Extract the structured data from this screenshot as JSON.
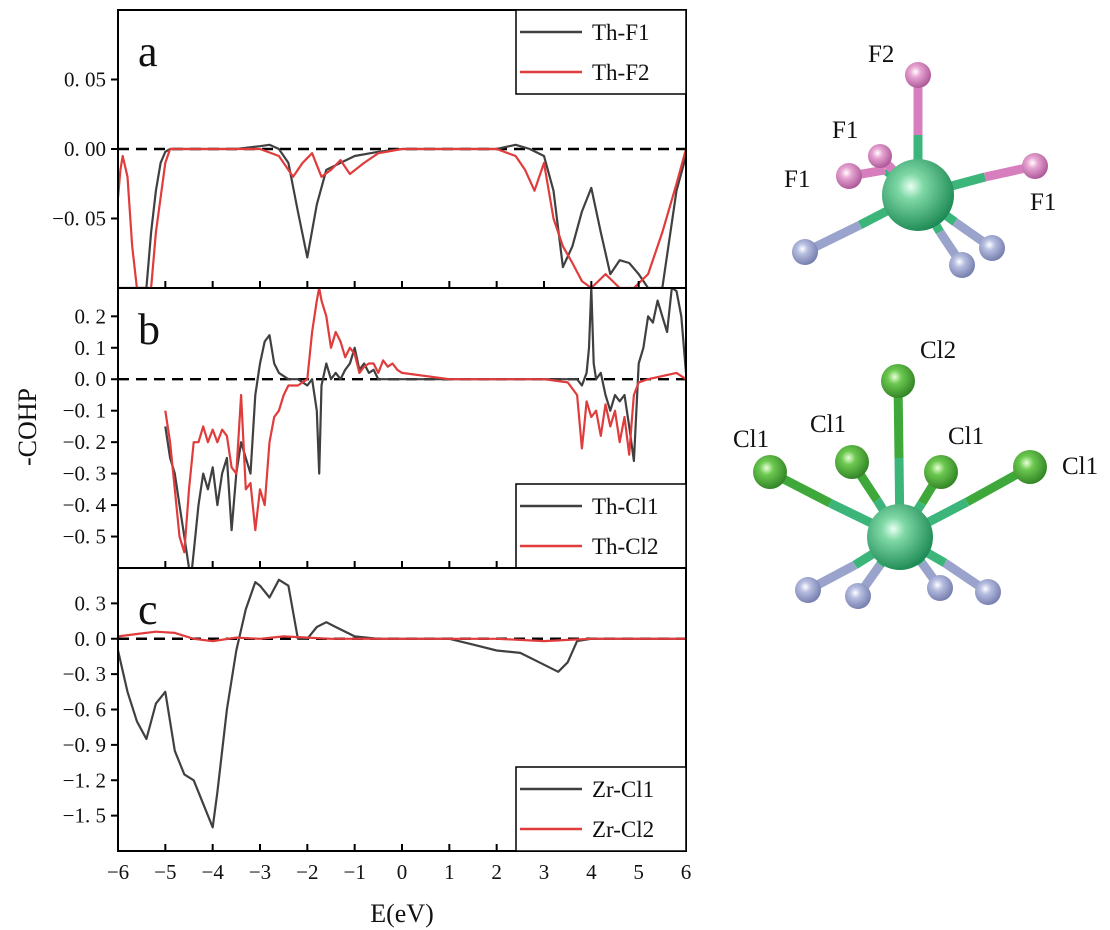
{
  "figure": {
    "xlabel": "E(eV)",
    "ylabel": "-COHP"
  },
  "chart_data": [
    {
      "type": "line",
      "panel_label": "a",
      "xlim": [
        -6,
        6
      ],
      "ylim": [
        -0.1,
        0.1
      ],
      "yticks": [
        0.05,
        0.0,
        -0.05
      ],
      "yticklabels": [
        "0. 05",
        "0. 00",
        "−0. 05"
      ],
      "zero_line": true,
      "legend_position": "top-right",
      "series": [
        {
          "name": "Th-F1",
          "color": "#404040",
          "x": [
            -6,
            -5.7,
            -5.5,
            -5.4,
            -5.3,
            -5.2,
            -5.1,
            -5.0,
            -4.9,
            -4.7,
            -4.5,
            -4.0,
            -3.5,
            -3.0,
            -2.8,
            -2.6,
            -2.4,
            -2.2,
            -2.0,
            -1.8,
            -1.6,
            -1.3,
            -1.0,
            -0.5,
            0.0,
            1.0,
            2.0,
            2.4,
            2.7,
            3.0,
            3.2,
            3.4,
            3.6,
            3.8,
            4.0,
            4.2,
            4.4,
            4.6,
            4.8,
            5.0,
            5.2,
            5.5,
            5.8,
            6.0
          ],
          "y": [
            -0.1,
            -0.1,
            -0.1,
            -0.1,
            -0.06,
            -0.03,
            -0.01,
            -0.002,
            0.0,
            0.0,
            0.0,
            0.0,
            0.0,
            0.002,
            0.003,
            0.0,
            -0.01,
            -0.045,
            -0.078,
            -0.04,
            -0.015,
            -0.01,
            -0.005,
            -0.002,
            0.0,
            0.0,
            0.0,
            0.003,
            0.0,
            -0.005,
            -0.03,
            -0.085,
            -0.07,
            -0.045,
            -0.028,
            -0.06,
            -0.09,
            -0.08,
            -0.082,
            -0.09,
            -0.1,
            -0.1,
            -0.03,
            -0.005
          ]
        },
        {
          "name": "Th-F2",
          "color": "#e03c3c",
          "x": [
            -6,
            -5.95,
            -5.9,
            -5.8,
            -5.7,
            -5.6,
            -5.5,
            -5.4,
            -5.3,
            -5.2,
            -5.0,
            -4.9,
            -4.5,
            -4.0,
            -3.5,
            -3.0,
            -2.6,
            -2.3,
            -2.1,
            -1.9,
            -1.7,
            -1.5,
            -1.3,
            -1.1,
            -0.8,
            -0.5,
            0.0,
            1.0,
            2.0,
            2.4,
            2.6,
            2.8,
            3.0,
            3.2,
            3.4,
            3.6,
            3.8,
            4.0,
            4.3,
            4.6,
            4.9,
            5.2,
            5.5,
            5.8,
            6.0
          ],
          "y": [
            -0.035,
            -0.015,
            -0.005,
            -0.02,
            -0.07,
            -0.1,
            -0.1,
            -0.1,
            -0.1,
            -0.06,
            -0.01,
            0.0,
            0.0,
            0.0,
            0.0,
            0.0,
            -0.005,
            -0.02,
            -0.01,
            -0.003,
            -0.02,
            -0.015,
            -0.008,
            -0.018,
            -0.01,
            -0.003,
            0.0,
            0.0,
            0.0,
            -0.005,
            -0.015,
            -0.03,
            -0.01,
            -0.05,
            -0.07,
            -0.082,
            -0.095,
            -0.1,
            -0.09,
            -0.1,
            -0.1,
            -0.09,
            -0.06,
            -0.025,
            0.0
          ]
        }
      ]
    },
    {
      "type": "line",
      "panel_label": "b",
      "xlim": [
        -6,
        6
      ],
      "ylim": [
        -0.6,
        0.29
      ],
      "yticks": [
        0.2,
        0.1,
        0.0,
        -0.1,
        -0.2,
        -0.3,
        -0.4,
        -0.5
      ],
      "yticklabels": [
        "0. 2",
        "0. 1",
        "0. 0",
        "−0. 1",
        "−0. 2",
        "−0. 3",
        "−0. 4",
        "−0. 5"
      ],
      "zero_line": true,
      "legend_position": "bottom-right",
      "series": [
        {
          "name": "Th-Cl1",
          "color": "#404040",
          "x": [
            -5.0,
            -4.9,
            -4.8,
            -4.7,
            -4.6,
            -4.5,
            -4.45,
            -4.4,
            -4.3,
            -4.2,
            -4.1,
            -4.0,
            -3.9,
            -3.8,
            -3.7,
            -3.6,
            -3.5,
            -3.4,
            -3.3,
            -3.2,
            -3.1,
            -3.0,
            -2.9,
            -2.8,
            -2.7,
            -2.6,
            -2.4,
            -2.2,
            -2.0,
            -1.9,
            -1.8,
            -1.75,
            -1.7,
            -1.6,
            -1.5,
            -1.4,
            -1.3,
            -1.2,
            -1.1,
            -1.0,
            -0.9,
            -0.8,
            -0.7,
            -0.6,
            -0.5,
            -0.4,
            0.0,
            1.0,
            2.0,
            3.0,
            3.5,
            3.7,
            3.8,
            3.9,
            3.95,
            4.0,
            4.05,
            4.1,
            4.2,
            4.3,
            4.4,
            4.5,
            4.6,
            4.7,
            4.8,
            4.9,
            5.0,
            5.1,
            5.2,
            5.3,
            5.4,
            5.5,
            5.6,
            5.7,
            5.8,
            5.9,
            6.0
          ],
          "y": [
            -0.15,
            -0.25,
            -0.3,
            -0.4,
            -0.5,
            -0.6,
            -0.62,
            -0.55,
            -0.4,
            -0.3,
            -0.35,
            -0.28,
            -0.4,
            -0.3,
            -0.25,
            -0.48,
            -0.3,
            -0.2,
            -0.25,
            -0.3,
            -0.05,
            0.05,
            0.12,
            0.14,
            0.05,
            0.02,
            0.0,
            0.0,
            -0.02,
            0.0,
            -0.1,
            -0.3,
            -0.02,
            0.05,
            0.0,
            0.02,
            0.0,
            0.03,
            0.05,
            0.1,
            0.03,
            0.05,
            0.02,
            0.03,
            0.0,
            0.0,
            0.0,
            0.0,
            0.0,
            0.0,
            0.0,
            0.0,
            -0.02,
            0.02,
            0.1,
            0.29,
            0.05,
            0.0,
            0.02,
            -0.05,
            -0.1,
            -0.05,
            -0.07,
            -0.05,
            -0.15,
            -0.26,
            0.05,
            0.1,
            0.2,
            0.18,
            0.25,
            0.2,
            0.15,
            0.29,
            0.28,
            0.2,
            0.02
          ]
        },
        {
          "name": "Th-Cl2",
          "color": "#e03c3c",
          "x": [
            -5.0,
            -4.9,
            -4.8,
            -4.7,
            -4.6,
            -4.5,
            -4.4,
            -4.3,
            -4.2,
            -4.1,
            -4.0,
            -3.9,
            -3.8,
            -3.7,
            -3.6,
            -3.5,
            -3.4,
            -3.3,
            -3.2,
            -3.1,
            -3.0,
            -2.9,
            -2.8,
            -2.7,
            -2.6,
            -2.5,
            -2.4,
            -2.2,
            -2.0,
            -1.9,
            -1.8,
            -1.75,
            -1.7,
            -1.6,
            -1.5,
            -1.4,
            -1.3,
            -1.2,
            -1.1,
            -1.0,
            -0.9,
            -0.8,
            -0.7,
            -0.6,
            -0.5,
            -0.4,
            -0.3,
            -0.2,
            -0.1,
            0.0,
            1.0,
            2.0,
            3.0,
            3.5,
            3.7,
            3.8,
            3.85,
            3.9,
            4.0,
            4.1,
            4.2,
            4.3,
            4.4,
            4.5,
            4.6,
            4.7,
            4.8,
            4.85,
            4.9,
            5.0,
            5.2,
            5.5,
            5.8,
            6.0
          ],
          "y": [
            -0.1,
            -0.2,
            -0.35,
            -0.5,
            -0.55,
            -0.35,
            -0.2,
            -0.2,
            -0.15,
            -0.2,
            -0.16,
            -0.2,
            -0.16,
            -0.18,
            -0.28,
            -0.3,
            -0.05,
            -0.35,
            -0.33,
            -0.48,
            -0.35,
            -0.4,
            -0.2,
            -0.12,
            -0.1,
            -0.05,
            -0.02,
            -0.02,
            0.0,
            0.15,
            0.25,
            0.29,
            0.25,
            0.2,
            0.1,
            0.15,
            0.12,
            0.07,
            0.1,
            0.08,
            0.02,
            0.04,
            0.05,
            0.05,
            0.02,
            0.06,
            0.04,
            0.05,
            0.03,
            0.02,
            0.0,
            0.0,
            0.0,
            -0.01,
            -0.05,
            -0.22,
            -0.15,
            -0.07,
            -0.12,
            -0.1,
            -0.18,
            -0.08,
            -0.15,
            -0.1,
            -0.2,
            -0.12,
            -0.24,
            -0.14,
            -0.05,
            -0.01,
            0.0,
            0.01,
            0.02,
            0.0
          ]
        }
      ]
    },
    {
      "type": "line",
      "panel_label": "c",
      "xlim": [
        -6,
        6
      ],
      "ylim": [
        -1.8,
        0.6
      ],
      "yticks": [
        0.3,
        0.0,
        -0.3,
        -0.6,
        -0.9,
        -1.2,
        -1.5
      ],
      "yticklabels": [
        "0. 3",
        "0. 0",
        "−0. 3",
        "−0. 6",
        "−0. 9",
        "−1. 2",
        "−1. 5"
      ],
      "zero_line": true,
      "legend_position": "bottom-right",
      "series": [
        {
          "name": "Zr-Cl1",
          "color": "#404040",
          "x": [
            -6.0,
            -5.8,
            -5.6,
            -5.4,
            -5.2,
            -5.0,
            -4.8,
            -4.6,
            -4.4,
            -4.2,
            -4.0,
            -3.9,
            -3.7,
            -3.5,
            -3.3,
            -3.1,
            -3.0,
            -2.8,
            -2.6,
            -2.4,
            -2.2,
            -2.0,
            -1.8,
            -1.6,
            -1.4,
            -1.0,
            -0.5,
            0.0,
            1.0,
            1.5,
            2.0,
            2.5,
            3.0,
            3.3,
            3.5,
            3.7,
            4.0,
            5.0,
            6.0
          ],
          "y": [
            -0.1,
            -0.45,
            -0.7,
            -0.85,
            -0.55,
            -0.45,
            -0.95,
            -1.15,
            -1.2,
            -1.4,
            -1.6,
            -1.3,
            -0.6,
            -0.1,
            0.25,
            0.48,
            0.45,
            0.35,
            0.5,
            0.45,
            0.0,
            0.0,
            0.1,
            0.14,
            0.1,
            0.02,
            0.0,
            0.0,
            0.0,
            -0.05,
            -0.1,
            -0.12,
            -0.22,
            -0.28,
            -0.2,
            -0.02,
            0.0,
            0.0,
            0.0
          ]
        },
        {
          "name": "Zr-Cl2",
          "color": "#e03c3c",
          "x": [
            -6.0,
            -5.6,
            -5.2,
            -4.8,
            -4.4,
            -4.0,
            -3.5,
            -3.0,
            -2.5,
            -2.0,
            -1.5,
            -1.0,
            0.0,
            1.0,
            2.0,
            2.5,
            3.0,
            3.5,
            4.0,
            5.0,
            6.0
          ],
          "y": [
            0.02,
            0.04,
            0.06,
            0.05,
            0.0,
            -0.02,
            0.01,
            0.0,
            0.02,
            0.01,
            0.0,
            0.0,
            0.0,
            0.0,
            0.0,
            -0.01,
            -0.02,
            -0.01,
            0.0,
            0.0,
            0.0
          ]
        }
      ]
    }
  ],
  "xaxis": {
    "ticks": [
      -6,
      -5,
      -4,
      -3,
      -2,
      -1,
      0,
      1,
      2,
      3,
      4,
      5,
      6
    ],
    "ticklabels": [
      "−6",
      "−5",
      "−4",
      "−3",
      "−2",
      "−1",
      "0",
      "1",
      "2",
      "3",
      "4",
      "5",
      "6"
    ]
  },
  "structures": [
    {
      "name": "Th-F",
      "labels": [
        "F2",
        "F1",
        "F1",
        "F1"
      ],
      "colors": {
        "center": "#1fa862",
        "ligand": "#d77fbe",
        "other": "#9aa3cc",
        "bond_center": "#3cb57a"
      }
    },
    {
      "name": "Th-Cl",
      "labels": [
        "Cl2",
        "Cl1",
        "Cl1",
        "Cl1",
        "Cl1"
      ],
      "colors": {
        "center": "#1fa862",
        "ligand": "#3ea83a",
        "other": "#9aa3cc",
        "bond_center": "#3cb57a"
      }
    }
  ]
}
